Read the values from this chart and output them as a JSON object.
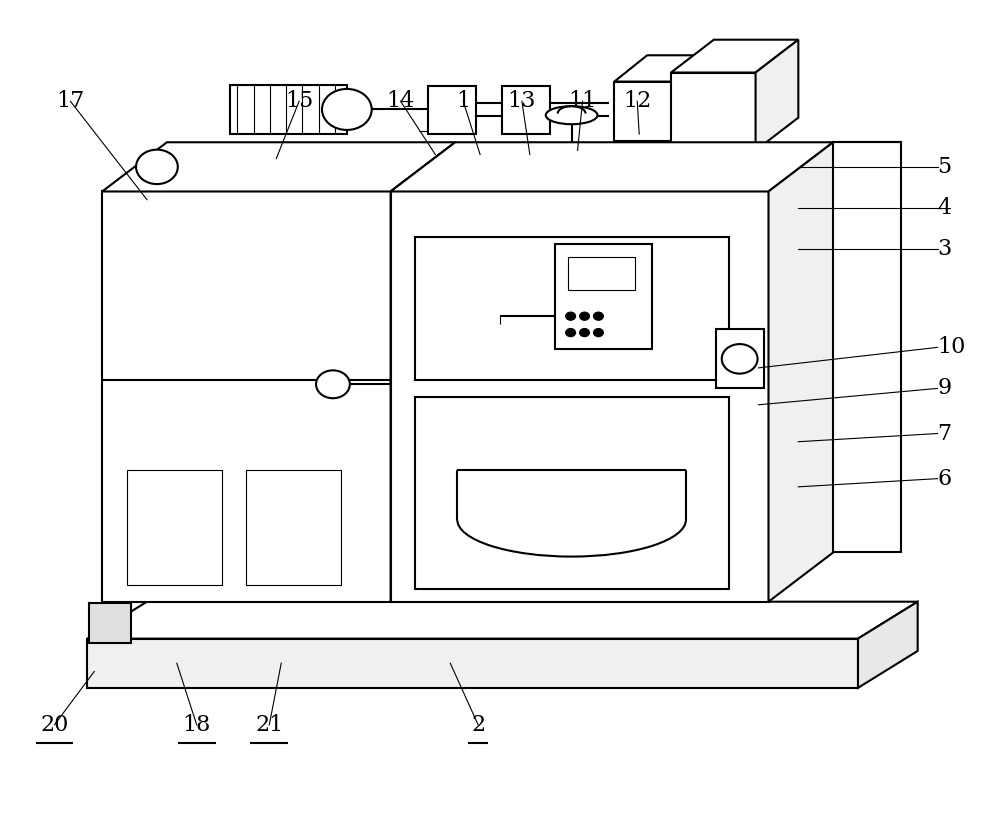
{
  "bg_color": "#ffffff",
  "lc": "#000000",
  "lw": 1.5,
  "tlw": 0.8,
  "label_fs": 16,
  "underlined_labels": [
    "2",
    "18",
    "20",
    "21"
  ],
  "annotations": {
    "17": {
      "lpos": [
        0.068,
        0.88
      ],
      "tpos": [
        0.145,
        0.76
      ]
    },
    "15": {
      "lpos": [
        0.298,
        0.88
      ],
      "tpos": [
        0.275,
        0.81
      ]
    },
    "14": {
      "lpos": [
        0.4,
        0.88
      ],
      "tpos": [
        0.435,
        0.815
      ]
    },
    "1": {
      "lpos": [
        0.463,
        0.88
      ],
      "tpos": [
        0.48,
        0.815
      ]
    },
    "13": {
      "lpos": [
        0.522,
        0.88
      ],
      "tpos": [
        0.53,
        0.815
      ]
    },
    "11": {
      "lpos": [
        0.583,
        0.88
      ],
      "tpos": [
        0.578,
        0.82
      ]
    },
    "12": {
      "lpos": [
        0.638,
        0.88
      ],
      "tpos": [
        0.64,
        0.84
      ]
    },
    "5": {
      "lpos": [
        0.94,
        0.8
      ],
      "tpos": [
        0.8,
        0.8
      ]
    },
    "4": {
      "lpos": [
        0.94,
        0.75
      ],
      "tpos": [
        0.8,
        0.75
      ]
    },
    "3": {
      "lpos": [
        0.94,
        0.7
      ],
      "tpos": [
        0.8,
        0.7
      ]
    },
    "10": {
      "lpos": [
        0.94,
        0.58
      ],
      "tpos": [
        0.76,
        0.555
      ]
    },
    "9": {
      "lpos": [
        0.94,
        0.53
      ],
      "tpos": [
        0.76,
        0.51
      ]
    },
    "7": {
      "lpos": [
        0.94,
        0.475
      ],
      "tpos": [
        0.8,
        0.465
      ]
    },
    "6": {
      "lpos": [
        0.94,
        0.42
      ],
      "tpos": [
        0.8,
        0.41
      ]
    },
    "20": {
      "lpos": [
        0.052,
        0.12
      ],
      "tpos": [
        0.092,
        0.185
      ]
    },
    "18": {
      "lpos": [
        0.195,
        0.12
      ],
      "tpos": [
        0.175,
        0.195
      ]
    },
    "21": {
      "lpos": [
        0.268,
        0.12
      ],
      "tpos": [
        0.28,
        0.195
      ]
    },
    "2": {
      "lpos": [
        0.478,
        0.12
      ],
      "tpos": [
        0.45,
        0.195
      ]
    }
  }
}
